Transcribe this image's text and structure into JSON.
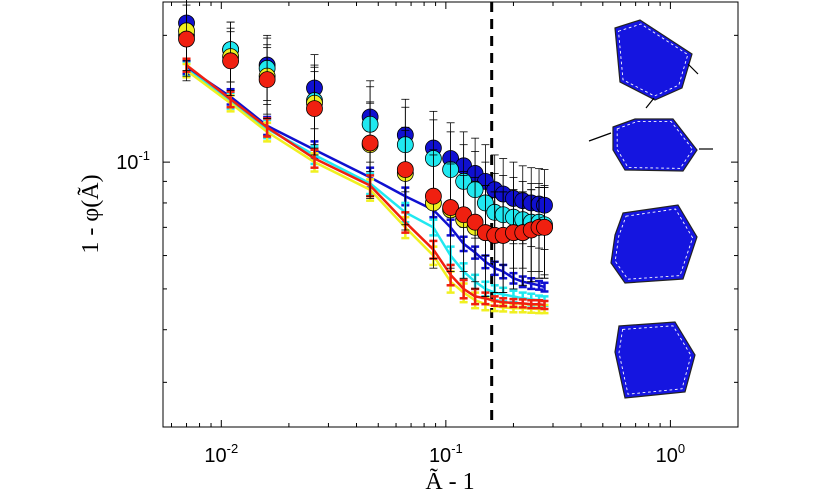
{
  "chart_data": {
    "type": "scatter",
    "xscale": "log",
    "yscale": "log",
    "xlim": [
      0.0055,
      2.0
    ],
    "ylim": [
      0.0235,
      0.24
    ],
    "xlabel": "Ã - 1",
    "ylabel": "1 - φ(Ã)",
    "xticks": [
      {
        "value": 0.01,
        "label": "10",
        "exp": "-2"
      },
      {
        "value": 0.1,
        "label": "10",
        "exp": "-1"
      },
      {
        "value": 1.0,
        "label": "10",
        "exp": "0"
      }
    ],
    "yticks": [
      {
        "value": 0.1,
        "label": "10",
        "exp": "-1"
      }
    ],
    "vline_x": 0.16,
    "grid": false,
    "series": [
      {
        "kind": "errorbar-line",
        "color": "#1010d0",
        "x": [
          0.007,
          0.011,
          0.016,
          0.026,
          0.046,
          0.066,
          0.088,
          0.105,
          0.12,
          0.135,
          0.15,
          0.165,
          0.18,
          0.2,
          0.22,
          0.24,
          0.26,
          0.275
        ],
        "y": [
          0.168,
          0.143,
          0.122,
          0.107,
          0.092,
          0.083,
          0.077,
          0.07,
          0.064,
          0.061,
          0.058,
          0.056,
          0.055,
          0.053,
          0.052,
          0.0515,
          0.051,
          0.0505
        ],
        "err": [
          0.006,
          0.006,
          0.006,
          0.005,
          0.005,
          0.004,
          0.003,
          0.003,
          0.0025,
          0.002,
          0.002,
          0.002,
          0.002,
          0.0015,
          0.0015,
          0.0015,
          0.0012,
          0.0012
        ]
      },
      {
        "kind": "errorbar-line",
        "color": "#20e8f0",
        "x": [
          0.007,
          0.011,
          0.016,
          0.026,
          0.046,
          0.066,
          0.088,
          0.105,
          0.12,
          0.135,
          0.15,
          0.165,
          0.18,
          0.2,
          0.22,
          0.24,
          0.26,
          0.275
        ],
        "y": [
          0.166,
          0.14,
          0.12,
          0.104,
          0.089,
          0.076,
          0.07,
          0.06,
          0.055,
          0.052,
          0.05,
          0.049,
          0.0485,
          0.048,
          0.0475,
          0.0472,
          0.047,
          0.0468
        ],
        "err": [
          0.006,
          0.006,
          0.006,
          0.005,
          0.005,
          0.004,
          0.003,
          0.003,
          0.0025,
          0.002,
          0.002,
          0.002,
          0.0018,
          0.0015,
          0.0015,
          0.0015,
          0.0012,
          0.0012
        ]
      },
      {
        "kind": "errorbar-line",
        "color": "#f0f020",
        "x": [
          0.007,
          0.011,
          0.016,
          0.026,
          0.046,
          0.066,
          0.088,
          0.105,
          0.12,
          0.135,
          0.15,
          0.165,
          0.18,
          0.2,
          0.22,
          0.24,
          0.26,
          0.275
        ],
        "y": [
          0.165,
          0.138,
          0.118,
          0.1,
          0.086,
          0.07,
          0.06,
          0.052,
          0.049,
          0.047,
          0.046,
          0.0455,
          0.0452,
          0.045,
          0.045,
          0.0449,
          0.0448,
          0.0448
        ],
        "err": [
          0.006,
          0.006,
          0.006,
          0.005,
          0.005,
          0.004,
          0.003,
          0.003,
          0.0025,
          0.002,
          0.0015,
          0.0012,
          0.001,
          0.001,
          0.001,
          0.001,
          0.001,
          0.001
        ]
      },
      {
        "kind": "errorbar-line",
        "color": "#f02010",
        "x": [
          0.007,
          0.011,
          0.016,
          0.026,
          0.046,
          0.066,
          0.088,
          0.105,
          0.12,
          0.135,
          0.15,
          0.165,
          0.18,
          0.2,
          0.22,
          0.24,
          0.26,
          0.275
        ],
        "y": [
          0.17,
          0.141,
          0.121,
          0.102,
          0.088,
          0.072,
          0.062,
          0.054,
          0.05,
          0.048,
          0.0475,
          0.0468,
          0.0465,
          0.0463,
          0.0462,
          0.046,
          0.046,
          0.0458
        ],
        "err": [
          0.006,
          0.006,
          0.006,
          0.005,
          0.005,
          0.004,
          0.003,
          0.003,
          0.0025,
          0.002,
          0.0015,
          0.0012,
          0.001,
          0.001,
          0.001,
          0.001,
          0.001,
          0.001
        ]
      },
      {
        "kind": "marker",
        "color": "#1010d0",
        "x": [
          0.007,
          0.011,
          0.016,
          0.026,
          0.046,
          0.066,
          0.088,
          0.105,
          0.12,
          0.135,
          0.15,
          0.165,
          0.18,
          0.2,
          0.22,
          0.24,
          0.26,
          0.275
        ],
        "y": [
          0.214,
          0.185,
          0.17,
          0.15,
          0.128,
          0.116,
          0.108,
          0.102,
          0.098,
          0.094,
          0.09,
          0.086,
          0.084,
          0.082,
          0.081,
          0.08,
          0.0795,
          0.079
        ],
        "err": [
          0.04,
          0.03,
          0.03,
          0.03,
          0.028,
          0.025,
          0.024,
          0.022,
          0.02,
          0.02,
          0.02,
          0.018,
          0.018,
          0.018,
          0.017,
          0.017,
          0.017,
          0.017
        ]
      },
      {
        "kind": "marker",
        "color": "#20e8f0",
        "x": [
          0.007,
          0.011,
          0.016,
          0.026,
          0.046,
          0.066,
          0.088,
          0.105,
          0.12,
          0.135,
          0.15,
          0.165,
          0.18,
          0.2,
          0.22,
          0.24,
          0.26,
          0.275
        ],
        "y": [
          0.2,
          0.185,
          0.167,
          0.14,
          0.123,
          0.11,
          0.102,
          0.096,
          0.09,
          0.086,
          0.08,
          0.076,
          0.075,
          0.074,
          0.073,
          0.072,
          0.072,
          0.071
        ],
        "err": [
          0.04,
          0.03,
          0.03,
          0.03,
          0.028,
          0.025,
          0.024,
          0.022,
          0.02,
          0.02,
          0.02,
          0.018,
          0.018,
          0.018,
          0.017,
          0.017,
          0.017,
          0.017
        ]
      },
      {
        "kind": "marker",
        "color": "#f0f020",
        "x": [
          0.007,
          0.011,
          0.016,
          0.026,
          0.046,
          0.066,
          0.088,
          0.105,
          0.12,
          0.135,
          0.15,
          0.165,
          0.18,
          0.2,
          0.22,
          0.24,
          0.26,
          0.275
        ],
        "y": [
          0.205,
          0.178,
          0.16,
          0.138,
          0.11,
          0.094,
          0.08,
          0.077,
          0.073,
          0.07,
          0.068,
          0.067,
          0.067,
          0.068,
          0.068,
          0.069,
          0.07,
          0.07
        ],
        "err": [
          0.04,
          0.03,
          0.03,
          0.03,
          0.028,
          0.025,
          0.024,
          0.022,
          0.02,
          0.02,
          0.02,
          0.018,
          0.018,
          0.018,
          0.017,
          0.017,
          0.017,
          0.017
        ]
      },
      {
        "kind": "marker",
        "color": "#f02010",
        "x": [
          0.007,
          0.011,
          0.016,
          0.026,
          0.046,
          0.066,
          0.088,
          0.105,
          0.12,
          0.135,
          0.15,
          0.165,
          0.18,
          0.2,
          0.22,
          0.24,
          0.26,
          0.275
        ],
        "y": [
          0.196,
          0.174,
          0.157,
          0.134,
          0.111,
          0.096,
          0.083,
          0.078,
          0.075,
          0.072,
          0.068,
          0.067,
          0.067,
          0.068,
          0.068,
          0.069,
          0.07,
          0.07
        ],
        "err": [
          0.04,
          0.03,
          0.03,
          0.03,
          0.028,
          0.025,
          0.024,
          0.022,
          0.02,
          0.02,
          0.02,
          0.018,
          0.018,
          0.018,
          0.017,
          0.017,
          0.017,
          0.017
        ]
      }
    ],
    "insets": [
      {
        "name": "polygon-inset-1",
        "color": "#1515e0",
        "arrows": true
      },
      {
        "name": "polygon-inset-2",
        "color": "#1515e0",
        "arrows": true
      },
      {
        "name": "polygon-inset-3",
        "color": "#1515e0",
        "arrows": false
      },
      {
        "name": "polygon-inset-4",
        "color": "#1515e0",
        "arrows": false
      }
    ]
  }
}
